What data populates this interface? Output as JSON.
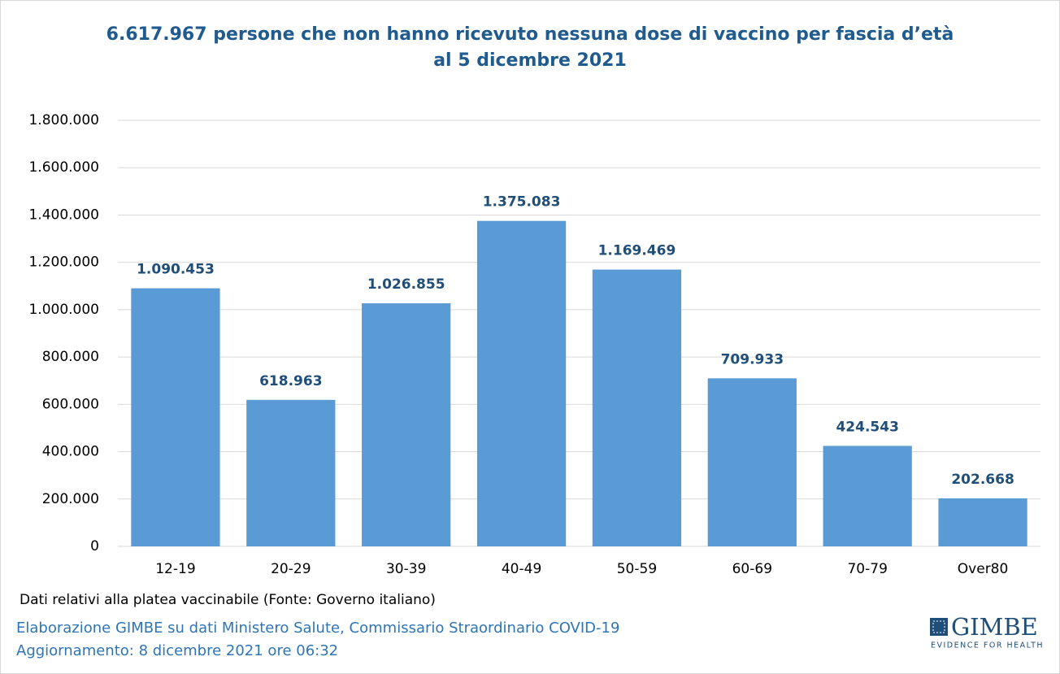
{
  "chart_data": {
    "type": "bar",
    "title": [
      "6.617.967 persone che non hanno ricevuto nessuna dose di vaccino per fascia d’età",
      "al 5 dicembre 2021"
    ],
    "categories": [
      "12-19",
      "20-29",
      "30-39",
      "40-49",
      "50-59",
      "60-69",
      "70-79",
      "Over80"
    ],
    "values": [
      1090453,
      618963,
      1026855,
      1375083,
      1169469,
      709933,
      424543,
      202668
    ],
    "value_labels": [
      "1.090.453",
      "618.963",
      "1.026.855",
      "1.375.083",
      "1.169.469",
      "709.933",
      "424.543",
      "202.668"
    ],
    "color": "#5b9bd5",
    "ylim": [
      0,
      1800000
    ],
    "yticks": [
      0,
      {
        "value": 200000,
        "label": "200.000"
      },
      {
        "value": 400000,
        "label": "400.000"
      },
      {
        "value": 600000,
        "label": "600.000"
      },
      {
        "value": 800000,
        "label": "800.000"
      },
      {
        "value": 1000000,
        "label": "1.000.000"
      },
      {
        "value": 1200000,
        "label": "1.200.000"
      },
      {
        "value": 1400000,
        "label": "1.400.000"
      },
      {
        "value": 1600000,
        "label": "1.600.000"
      },
      {
        "value": 1800000,
        "label": "1.800.000"
      }
    ],
    "grid": true,
    "notes": [
      "Dati relativi alla platea vaccinabile (Fonte: Governo italiano)",
      "Elaborazione GIMBE su dati Ministero Salute, Commissario Straordinario COVID-19",
      "Aggiornamento: 8 dicembre 2021 ore 06:32"
    ],
    "logo": {
      "name": "GIMBE",
      "tagline": "EVIDENCE FOR HEALTH"
    }
  }
}
